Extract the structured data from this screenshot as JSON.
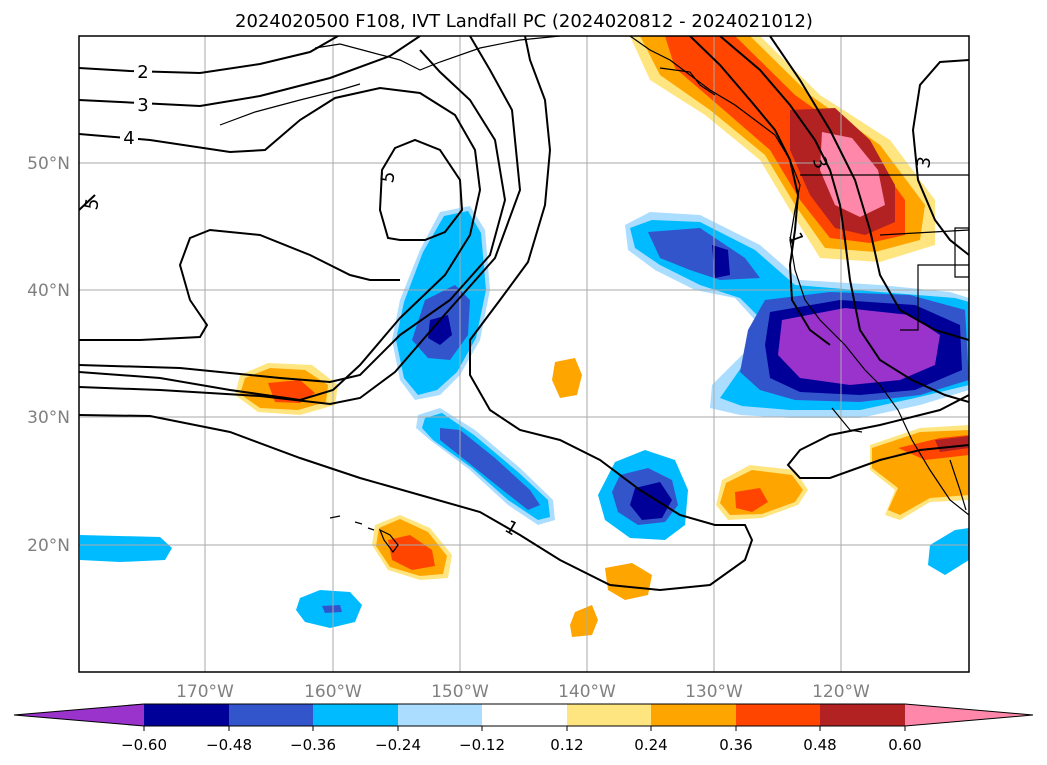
{
  "title": "2024020500 F108, IVT Landfall PC (2024020812 - 2024021012)",
  "map": {
    "lat_labels": [
      "50°N",
      "40°N",
      "30°N",
      "20°N"
    ],
    "lon_labels": [
      "170°W",
      "160°W",
      "150°W",
      "140°W",
      "130°W",
      "120°W"
    ],
    "contour_labels": [
      "2",
      "3",
      "4",
      "5",
      "5",
      "3",
      "3",
      "1",
      "1"
    ],
    "gridlines": true
  },
  "colorbar": {
    "ticks": [
      "−0.60",
      "−0.48",
      "−0.36",
      "−0.24",
      "−0.12",
      "0.12",
      "0.24",
      "0.36",
      "0.48",
      "0.60"
    ],
    "colors": {
      "under": "#9933cc",
      "levels": [
        "#9933cc",
        "#000099",
        "#3355cc",
        "#00bbff",
        "#aaddff",
        "#ffffff",
        "#ffe580",
        "#ffa500",
        "#ff4500",
        "#b22222",
        "#ff88aa"
      ],
      "over": "#ff88aa"
    },
    "extend": "both"
  }
}
